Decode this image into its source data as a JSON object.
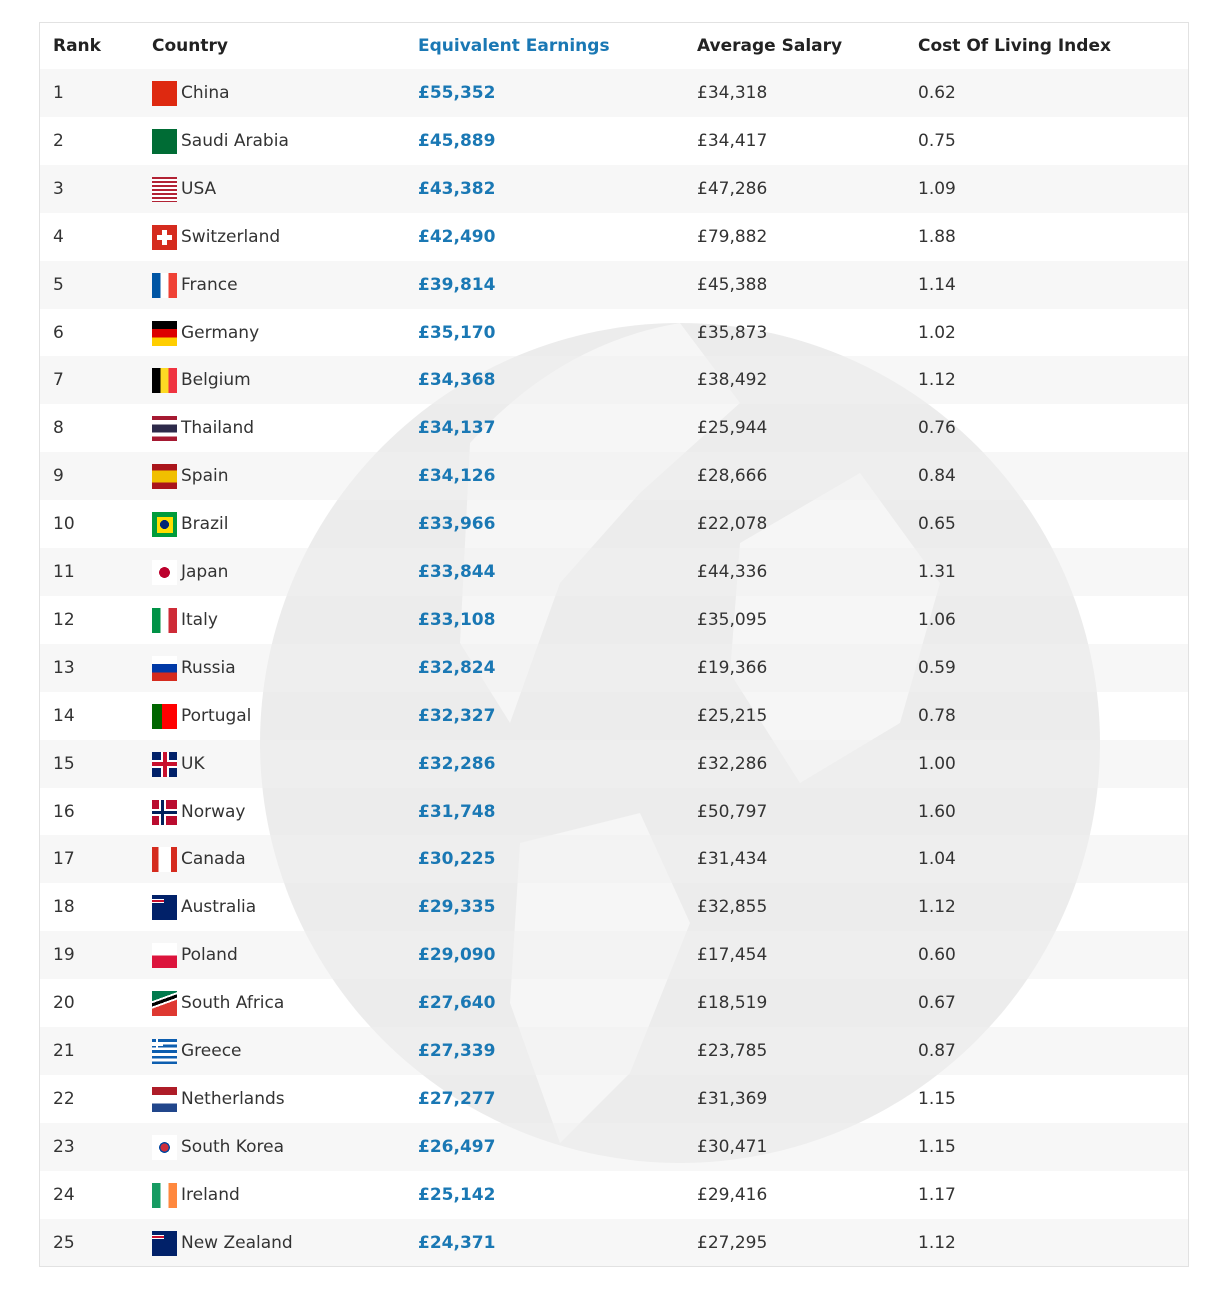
{
  "table": {
    "header": [
      "Rank",
      "Country",
      "Equivalent Earnings",
      "Average Salary",
      "Cost Of Living Index"
    ],
    "rows": [
      [
        "1",
        "China",
        "£55,352",
        "£34,318",
        "0.62"
      ],
      [
        "2",
        "Saudi Arabia",
        "£45,889",
        "£34,417",
        "0.75"
      ],
      [
        "3",
        "USA",
        "£43,382",
        "£47,286",
        "1.09"
      ],
      [
        "4",
        "Switzerland",
        "£42,490",
        "£79,882",
        "1.88"
      ],
      [
        "5",
        "France",
        "£39,814",
        "£45,388",
        "1.14"
      ],
      [
        "6",
        "Germany",
        "£35,170",
        "£35,873",
        "1.02"
      ],
      [
        "7",
        "Belgium",
        "£34,368",
        "£38,492",
        "1.12"
      ],
      [
        "8",
        "Thailand",
        "£34,137",
        "£25,944",
        "0.76"
      ],
      [
        "9",
        "Spain",
        "£34,126",
        "£28,666",
        "0.84"
      ],
      [
        "10",
        "Brazil",
        "£33,966",
        "£22,078",
        "0.65"
      ],
      [
        "11",
        "Japan",
        "£33,844",
        "£44,336",
        "1.31"
      ],
      [
        "12",
        "Italy",
        "£33,108",
        "£35,095",
        "1.06"
      ],
      [
        "13",
        "Russia",
        "£32,824",
        "£19,366",
        "0.59"
      ],
      [
        "14",
        "Portugal",
        "£32,327",
        "£25,215",
        "0.78"
      ],
      [
        "15",
        "UK",
        "£32,286",
        "£32,286",
        "1.00"
      ],
      [
        "16",
        "Norway",
        "£31,748",
        "£50,797",
        "1.60"
      ],
      [
        "17",
        "Canada",
        "£30,225",
        "£31,434",
        "1.04"
      ],
      [
        "18",
        "Australia",
        "£29,335",
        "£32,855",
        "1.12"
      ],
      [
        "19",
        "Poland",
        "£29,090",
        "£17,454",
        "0.60"
      ],
      [
        "20",
        "South Africa",
        "£27,640",
        "£18,519",
        "0.67"
      ],
      [
        "21",
        "Greece",
        "£27,339",
        "£23,785",
        "0.87"
      ],
      [
        "22",
        "Netherlands",
        "£27,277",
        "£31,369",
        "1.15"
      ],
      [
        "23",
        "South Korea",
        "£26,497",
        "£30,471",
        "1.15"
      ],
      [
        "24",
        "Ireland",
        "£25,142",
        "£29,416",
        "1.17"
      ],
      [
        "25",
        "New Zealand",
        "£24,371",
        "£27,295",
        "1.12"
      ]
    ]
  }
}
